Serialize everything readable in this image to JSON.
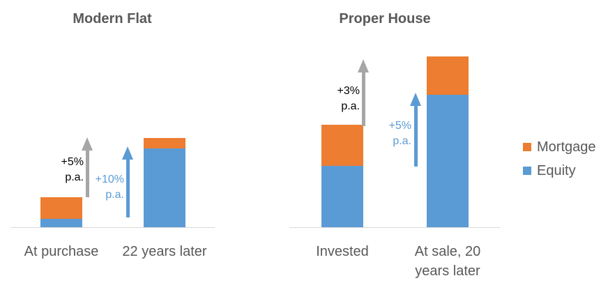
{
  "page": {
    "background": "#ffffff",
    "text_color": "#595959",
    "axis_line_color": "#D9D9D9"
  },
  "legend": {
    "items": [
      {
        "label": "Mortgage",
        "color": "#ED7D31"
      },
      {
        "label": "Equity",
        "color": "#5B9BD5"
      }
    ]
  },
  "chart_data": [
    {
      "type": "bar",
      "stacked": true,
      "title": "Modern Flat",
      "categories": [
        "At purchase",
        "22 years later"
      ],
      "series": [
        {
          "name": "Equity",
          "color": "#5B9BD5",
          "values": [
            12,
            113
          ]
        },
        {
          "name": "Mortgage",
          "color": "#ED7D31",
          "values": [
            31,
            15
          ]
        }
      ],
      "annotations": [
        {
          "text_lines": [
            "+5%",
            "p.a."
          ],
          "color": "#000000",
          "arrow_color": "#A6A6A6",
          "arrow": "up"
        },
        {
          "text_lines": [
            "+10%",
            "p.a."
          ],
          "color": "#5B9BD5",
          "arrow_color": "#5B9BD5",
          "arrow": "up"
        }
      ],
      "xlabel": "",
      "ylabel": "",
      "ylim": [
        0,
        260
      ],
      "value_axis_visible": false,
      "grid": false,
      "legend_position": "none"
    },
    {
      "type": "bar",
      "stacked": true,
      "title": "Proper House",
      "categories": [
        "Invested",
        "At sale, 20\nyears later"
      ],
      "series": [
        {
          "name": "Equity",
          "color": "#5B9BD5",
          "values": [
            88,
            190
          ]
        },
        {
          "name": "Mortgage",
          "color": "#ED7D31",
          "values": [
            59,
            55
          ]
        }
      ],
      "annotations": [
        {
          "text_lines": [
            "+3%",
            "p.a."
          ],
          "color": "#000000",
          "arrow_color": "#A6A6A6",
          "arrow": "up"
        },
        {
          "text_lines": [
            "+5%",
            "p.a."
          ],
          "color": "#5B9BD5",
          "arrow_color": "#5B9BD5",
          "arrow": "up"
        }
      ],
      "xlabel": "",
      "ylabel": "",
      "ylim": [
        0,
        260
      ],
      "value_axis_visible": false,
      "grid": false,
      "legend_position": "right"
    }
  ]
}
